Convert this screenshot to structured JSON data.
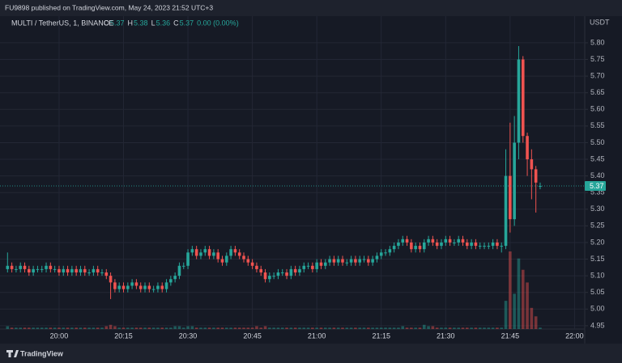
{
  "header": {
    "text": "FU9898 published on TradingView.com, May 24, 2023 21:52 UTC+3"
  },
  "footer": {
    "brand": "TradingView"
  },
  "chart_data": {
    "type": "candlestick",
    "legend": {
      "symbol": "MULTI / TetherUS, 1, BINANCE",
      "ohlc": [
        {
          "label": "O",
          "value": "5.37"
        },
        {
          "label": "H",
          "value": "5.38"
        },
        {
          "label": "L",
          "value": "5.36"
        },
        {
          "label": "C",
          "value": "5.37"
        }
      ],
      "change": "0.00 (0.00%)"
    },
    "y_axis_label": "USDT",
    "up_color": "#26a69a",
    "down_color": "#ef5350",
    "xlim": [
      "19:47",
      "22:02"
    ],
    "xticks": [
      "20:00",
      "20:15",
      "20:30",
      "20:45",
      "21:00",
      "21:15",
      "21:30",
      "21:45",
      "22:00"
    ],
    "ylim": [
      4.94,
      5.88
    ],
    "yticks": [
      {
        "value": 4.95,
        "label": "4.95"
      },
      {
        "value": 5.0,
        "label": "5.00"
      },
      {
        "value": 5.05,
        "label": "5.05"
      },
      {
        "value": 5.1,
        "label": "5.10"
      },
      {
        "value": 5.15,
        "label": "5.15"
      },
      {
        "value": 5.2,
        "label": "5.20"
      },
      {
        "value": 5.25,
        "label": "5.25"
      },
      {
        "value": 5.3,
        "label": "5.30"
      },
      {
        "value": 5.35,
        "label": "5.35"
      },
      {
        "value": 5.4,
        "label": "5.40"
      },
      {
        "value": 5.45,
        "label": "5.45"
      },
      {
        "value": 5.5,
        "label": "5.50"
      },
      {
        "value": 5.55,
        "label": "5.55"
      },
      {
        "value": 5.6,
        "label": "5.60"
      },
      {
        "value": 5.65,
        "label": "5.65"
      },
      {
        "value": 5.7,
        "label": "5.70"
      },
      {
        "value": 5.75,
        "label": "5.75"
      },
      {
        "value": 5.8,
        "label": "5.80"
      }
    ],
    "grid": true,
    "x": [
      "19:48",
      "19:49",
      "19:50",
      "19:51",
      "19:52",
      "19:53",
      "19:54",
      "19:55",
      "19:56",
      "19:57",
      "19:58",
      "19:59",
      "20:00",
      "20:01",
      "20:02",
      "20:03",
      "20:04",
      "20:05",
      "20:06",
      "20:07",
      "20:08",
      "20:09",
      "20:10",
      "20:11",
      "20:12",
      "20:13",
      "20:14",
      "20:15",
      "20:16",
      "20:17",
      "20:18",
      "20:19",
      "20:20",
      "20:21",
      "20:22",
      "20:23",
      "20:24",
      "20:25",
      "20:26",
      "20:27",
      "20:28",
      "20:29",
      "20:30",
      "20:31",
      "20:32",
      "20:33",
      "20:34",
      "20:35",
      "20:36",
      "20:37",
      "20:38",
      "20:39",
      "20:40",
      "20:41",
      "20:42",
      "20:43",
      "20:44",
      "20:45",
      "20:46",
      "20:47",
      "20:48",
      "20:49",
      "20:50",
      "20:51",
      "20:52",
      "20:53",
      "20:54",
      "20:55",
      "20:56",
      "20:57",
      "20:58",
      "20:59",
      "21:00",
      "21:01",
      "21:02",
      "21:03",
      "21:04",
      "21:05",
      "21:06",
      "21:07",
      "21:08",
      "21:09",
      "21:10",
      "21:11",
      "21:12",
      "21:13",
      "21:14",
      "21:15",
      "21:16",
      "21:17",
      "21:18",
      "21:19",
      "21:20",
      "21:21",
      "21:22",
      "21:23",
      "21:24",
      "21:25",
      "21:26",
      "21:27",
      "21:28",
      "21:29",
      "21:30",
      "21:31",
      "21:32",
      "21:33",
      "21:34",
      "21:35",
      "21:36",
      "21:37",
      "21:38",
      "21:39",
      "21:40",
      "21:41",
      "21:42",
      "21:43",
      "21:44",
      "21:45",
      "21:46",
      "21:47",
      "21:48",
      "21:49",
      "21:50",
      "21:51",
      "21:52"
    ],
    "open": [
      5.12,
      5.13,
      5.12,
      5.12,
      5.13,
      5.12,
      5.11,
      5.12,
      5.12,
      5.12,
      5.13,
      5.12,
      5.12,
      5.11,
      5.12,
      5.11,
      5.12,
      5.11,
      5.12,
      5.11,
      5.11,
      5.12,
      5.11,
      5.11,
      5.1,
      5.08,
      5.06,
      5.07,
      5.06,
      5.07,
      5.08,
      5.07,
      5.06,
      5.07,
      5.06,
      5.06,
      5.07,
      5.06,
      5.08,
      5.09,
      5.1,
      5.13,
      5.13,
      5.17,
      5.18,
      5.16,
      5.17,
      5.18,
      5.16,
      5.17,
      5.15,
      5.14,
      5.16,
      5.18,
      5.17,
      5.16,
      5.15,
      5.14,
      5.13,
      5.12,
      5.11,
      5.09,
      5.1,
      5.1,
      5.11,
      5.11,
      5.1,
      5.12,
      5.11,
      5.12,
      5.13,
      5.13,
      5.12,
      5.14,
      5.13,
      5.14,
      5.15,
      5.14,
      5.15,
      5.14,
      5.14,
      5.15,
      5.14,
      5.15,
      5.15,
      5.14,
      5.15,
      5.16,
      5.17,
      5.17,
      5.18,
      5.19,
      5.2,
      5.21,
      5.2,
      5.18,
      5.19,
      5.18,
      5.2,
      5.21,
      5.2,
      5.19,
      5.2,
      5.21,
      5.2,
      5.2,
      5.21,
      5.2,
      5.19,
      5.2,
      5.19,
      5.19,
      5.19,
      5.19,
      5.2,
      5.19,
      5.19,
      5.4,
      5.27,
      5.5,
      5.75,
      5.52,
      5.45,
      5.42,
      5.37
    ],
    "high": [
      5.17,
      5.14,
      5.13,
      5.14,
      5.14,
      5.13,
      5.13,
      5.13,
      5.13,
      5.14,
      5.14,
      5.13,
      5.13,
      5.13,
      5.13,
      5.13,
      5.13,
      5.13,
      5.13,
      5.12,
      5.13,
      5.13,
      5.12,
      5.12,
      5.11,
      5.09,
      5.08,
      5.08,
      5.08,
      5.09,
      5.09,
      5.08,
      5.08,
      5.08,
      5.07,
      5.08,
      5.08,
      5.09,
      5.1,
      5.11,
      5.14,
      5.14,
      5.18,
      5.19,
      5.19,
      5.18,
      5.19,
      5.19,
      5.18,
      5.18,
      5.16,
      5.17,
      5.19,
      5.19,
      5.18,
      5.17,
      5.16,
      5.15,
      5.14,
      5.13,
      5.12,
      5.11,
      5.11,
      5.12,
      5.12,
      5.12,
      5.13,
      5.13,
      5.13,
      5.14,
      5.14,
      5.14,
      5.15,
      5.15,
      5.15,
      5.16,
      5.16,
      5.16,
      5.16,
      5.15,
      5.16,
      5.16,
      5.16,
      5.16,
      5.16,
      5.16,
      5.17,
      5.18,
      5.18,
      5.19,
      5.2,
      5.21,
      5.22,
      5.22,
      5.21,
      5.2,
      5.2,
      5.21,
      5.22,
      5.22,
      5.21,
      5.21,
      5.22,
      5.22,
      5.21,
      5.22,
      5.22,
      5.21,
      5.21,
      5.21,
      5.2,
      5.2,
      5.2,
      5.21,
      5.21,
      5.2,
      5.48,
      5.56,
      5.58,
      5.79,
      5.76,
      5.53,
      5.48,
      5.43,
      5.38
    ],
    "low": [
      5.11,
      5.11,
      5.11,
      5.11,
      5.11,
      5.1,
      5.1,
      5.11,
      5.11,
      5.11,
      5.11,
      5.11,
      5.1,
      5.1,
      5.1,
      5.1,
      5.1,
      5.1,
      5.1,
      5.1,
      5.1,
      5.1,
      5.1,
      5.09,
      5.03,
      5.05,
      5.05,
      5.05,
      5.05,
      5.06,
      5.06,
      5.05,
      5.05,
      5.05,
      5.05,
      5.05,
      5.05,
      5.05,
      5.07,
      5.08,
      5.09,
      5.12,
      5.12,
      5.16,
      5.15,
      5.15,
      5.16,
      5.15,
      5.15,
      5.14,
      5.13,
      5.13,
      5.15,
      5.16,
      5.15,
      5.14,
      5.13,
      5.12,
      5.11,
      5.1,
      5.08,
      5.08,
      5.09,
      5.09,
      5.1,
      5.09,
      5.09,
      5.1,
      5.1,
      5.11,
      5.12,
      5.11,
      5.11,
      5.12,
      5.12,
      5.13,
      5.13,
      5.13,
      5.13,
      5.13,
      5.13,
      5.13,
      5.13,
      5.14,
      5.13,
      5.13,
      5.14,
      5.15,
      5.16,
      5.16,
      5.17,
      5.18,
      5.19,
      5.19,
      5.17,
      5.17,
      5.17,
      5.17,
      5.19,
      5.19,
      5.18,
      5.18,
      5.19,
      5.19,
      5.19,
      5.19,
      5.19,
      5.18,
      5.18,
      5.18,
      5.18,
      5.18,
      5.18,
      5.18,
      5.18,
      5.17,
      5.18,
      5.23,
      5.25,
      5.45,
      5.5,
      5.4,
      5.33,
      5.29,
      5.36
    ],
    "close": [
      5.13,
      5.12,
      5.12,
      5.13,
      5.12,
      5.11,
      5.12,
      5.12,
      5.12,
      5.13,
      5.12,
      5.12,
      5.11,
      5.12,
      5.11,
      5.12,
      5.11,
      5.12,
      5.11,
      5.11,
      5.12,
      5.11,
      5.11,
      5.1,
      5.08,
      5.06,
      5.07,
      5.06,
      5.07,
      5.08,
      5.07,
      5.06,
      5.07,
      5.06,
      5.06,
      5.07,
      5.06,
      5.08,
      5.09,
      5.1,
      5.13,
      5.13,
      5.17,
      5.18,
      5.16,
      5.17,
      5.18,
      5.16,
      5.17,
      5.15,
      5.14,
      5.16,
      5.18,
      5.17,
      5.16,
      5.15,
      5.14,
      5.13,
      5.12,
      5.11,
      5.09,
      5.1,
      5.1,
      5.11,
      5.11,
      5.1,
      5.12,
      5.11,
      5.12,
      5.13,
      5.13,
      5.12,
      5.14,
      5.13,
      5.14,
      5.15,
      5.14,
      5.15,
      5.14,
      5.14,
      5.15,
      5.14,
      5.15,
      5.15,
      5.14,
      5.15,
      5.16,
      5.17,
      5.17,
      5.18,
      5.19,
      5.2,
      5.21,
      5.2,
      5.18,
      5.19,
      5.18,
      5.2,
      5.21,
      5.2,
      5.19,
      5.2,
      5.21,
      5.2,
      5.2,
      5.21,
      5.2,
      5.19,
      5.2,
      5.19,
      5.19,
      5.19,
      5.19,
      5.2,
      5.19,
      5.19,
      5.4,
      5.27,
      5.5,
      5.75,
      5.52,
      5.45,
      5.42,
      5.38,
      5.37
    ],
    "volume": [
      2,
      1,
      1,
      1,
      1,
      1,
      1,
      1,
      1,
      1,
      1,
      1,
      1,
      1,
      1,
      1,
      1,
      1,
      1,
      1,
      1,
      1,
      1,
      2,
      3,
      2,
      1,
      1,
      1,
      1,
      1,
      1,
      1,
      1,
      1,
      1,
      1,
      1,
      1,
      2,
      2,
      1,
      2,
      2,
      1,
      1,
      1,
      1,
      1,
      1,
      1,
      1,
      1,
      1,
      1,
      1,
      1,
      1,
      2,
      1,
      2,
      1,
      1,
      1,
      1,
      1,
      1,
      1,
      1,
      1,
      1,
      1,
      1,
      1,
      1,
      1,
      1,
      1,
      1,
      1,
      1,
      1,
      1,
      1,
      1,
      1,
      1,
      1,
      1,
      1,
      1,
      1,
      2,
      1,
      1,
      1,
      1,
      3,
      2,
      2,
      1,
      1,
      1,
      1,
      1,
      1,
      1,
      1,
      1,
      1,
      1,
      1,
      1,
      1,
      1,
      1,
      20,
      55,
      25,
      50,
      42,
      33,
      15,
      9,
      1
    ]
  }
}
